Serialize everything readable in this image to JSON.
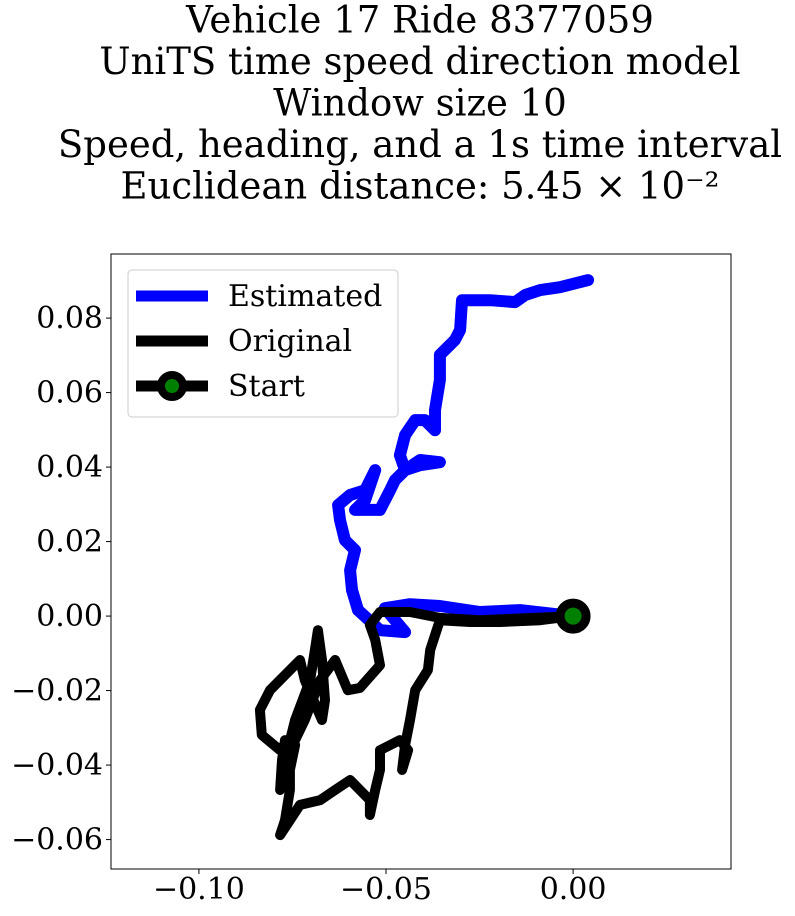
{
  "chart_data": {
    "type": "line",
    "title": [
      "Vehicle 17 Ride 8377059",
      "UniTS time speed direction model",
      "Window size 10",
      "Speed, heading, and a 1s time interval",
      "Euclidean distance: 5.45 × 10⁻²"
    ],
    "xlim": [
      -0.1235,
      0.0422
    ],
    "ylim": [
      -0.0679,
      0.0972
    ],
    "xticks": [
      {
        "value": -0.1,
        "label": "−0.10"
      },
      {
        "value": -0.05,
        "label": "−0.05"
      },
      {
        "value": 0,
        "label": "0.00"
      }
    ],
    "yticks": [
      {
        "value": -0.06,
        "label": "−0.06"
      },
      {
        "value": -0.04,
        "label": "−0.04"
      },
      {
        "value": -0.02,
        "label": "−0.02"
      },
      {
        "value": 0,
        "label": "0.00"
      },
      0.02,
      0.04,
      0.06,
      0.08
    ],
    "legend": "upper left",
    "series": [
      {
        "name": "Estimated",
        "color": "#0000ff",
        "x": [
          0,
          -0.0142,
          -0.0249,
          -0.0356,
          -0.0436,
          -0.0503,
          -0.0449,
          -0.0516,
          -0.0575,
          -0.0591,
          -0.0596,
          -0.0583,
          -0.061,
          -0.0623,
          -0.0628,
          -0.0596,
          -0.0556,
          -0.0529,
          -0.0556,
          -0.0583,
          -0.0516,
          -0.0489,
          -0.0476,
          -0.0449,
          -0.0409,
          -0.0356,
          -0.0409,
          -0.0449,
          -0.0463,
          -0.0449,
          -0.0422,
          -0.0396,
          -0.0369,
          -0.0369,
          -0.0356,
          -0.0356,
          -0.0316,
          -0.0302,
          -0.0297,
          -0.0222,
          -0.0155,
          -0.0128,
          -0.0088,
          -0.0035,
          0.004
        ],
        "y": [
          0,
          0.0016,
          0.0011,
          0.0027,
          0.0032,
          0.0021,
          -0.0043,
          -0.0038,
          0.0016,
          0.007,
          0.0123,
          0.0177,
          0.0204,
          0.0258,
          0.0298,
          0.0325,
          0.0338,
          0.0392,
          0.0311,
          0.0285,
          0.0285,
          0.0338,
          0.0365,
          0.0392,
          0.0405,
          0.0413,
          0.0419,
          0.0392,
          0.0432,
          0.0486,
          0.0526,
          0.0526,
          0.0499,
          0.0553,
          0.0634,
          0.0701,
          0.0741,
          0.0768,
          0.0848,
          0.0848,
          0.0843,
          0.0862,
          0.0875,
          0.0883,
          0.0902
        ]
      },
      {
        "name": "Original",
        "color": "#000000",
        "x": [
          0,
          -0.0088,
          -0.0195,
          -0.0275,
          -0.0356,
          -0.0382,
          -0.0388,
          -0.0422,
          -0.0436,
          -0.0449,
          -0.0457,
          -0.0441,
          -0.0463,
          -0.0516,
          -0.0516,
          -0.0529,
          -0.0543,
          -0.0543,
          -0.0596,
          -0.0636,
          -0.0676,
          -0.073,
          -0.0783,
          -0.077,
          -0.0757,
          -0.0757,
          -0.0743,
          -0.077,
          -0.0778,
          -0.0783,
          -0.077,
          -0.0743,
          -0.0703,
          -0.069,
          -0.0682,
          -0.0671,
          -0.0663,
          -0.0671,
          -0.0717,
          -0.073,
          -0.0757,
          -0.081,
          -0.0837,
          -0.0832,
          -0.0783,
          -0.0743,
          -0.0717,
          -0.0676,
          -0.0636,
          -0.0602,
          -0.057,
          -0.0516,
          -0.0529,
          -0.0543,
          -0.0516,
          -0.0436,
          -0.0356,
          -0.0249,
          0
        ],
        "y": [
          0,
          -0.0011,
          -0.0016,
          -0.0016,
          -0.0011,
          -0.0091,
          -0.0145,
          -0.0199,
          -0.0279,
          -0.0346,
          -0.0413,
          -0.036,
          -0.0333,
          -0.036,
          -0.0413,
          -0.0467,
          -0.0534,
          -0.0494,
          -0.044,
          -0.0467,
          -0.0494,
          -0.0507,
          -0.0588,
          -0.0548,
          -0.0467,
          -0.0413,
          -0.0346,
          -0.0333,
          -0.0387,
          -0.0467,
          -0.0387,
          -0.0279,
          -0.0172,
          -0.0091,
          -0.0038,
          -0.0118,
          -0.0226,
          -0.0279,
          -0.0172,
          -0.0118,
          -0.0145,
          -0.0199,
          -0.0252,
          -0.0319,
          -0.036,
          -0.0333,
          -0.0279,
          -0.0172,
          -0.0118,
          -0.0199,
          -0.0193,
          -0.0132,
          -0.0064,
          -0.0024,
          0.0011,
          0.0011,
          -0.0005,
          -0.0011,
          0
        ]
      },
      {
        "name": "Start",
        "color": "#000000",
        "marker_color": "#008000",
        "x": [
          0
        ],
        "y": [
          0
        ]
      }
    ]
  }
}
